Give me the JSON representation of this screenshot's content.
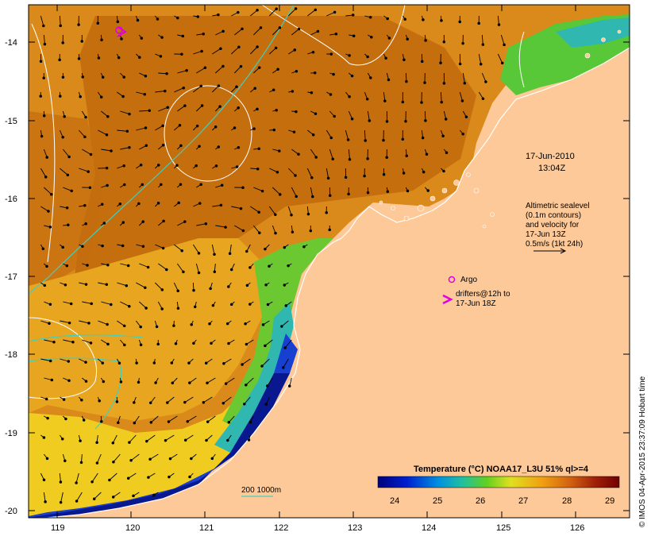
{
  "map": {
    "date_line1": "17-Jun-2010",
    "date_line2": "13:04Z",
    "altimetry_lines": [
      "Altimetric sealevel",
      "(0.1m contours)",
      "and velocity for",
      "17-Jun 13Z",
      "0.5m/s (1kt 24h)"
    ],
    "argo_label": "Argo",
    "drifters_lines": [
      "drifters@12h to",
      "17-Jun 18Z"
    ],
    "isobath_label": "200  1000m",
    "credit": "© IMOS 04-Apr-2015 23:37:09 Hobart time",
    "colorbar": {
      "title": "Temperature (°C) NOAA17_L3U 51% ql>=4",
      "ticks": [
        "24",
        "25",
        "26",
        "27",
        "28",
        "29"
      ]
    },
    "x_ticks": [
      "119",
      "120",
      "121",
      "122",
      "123",
      "124",
      "125",
      "126"
    ],
    "y_ticks": [
      "-14",
      "-15",
      "-16",
      "-17",
      "-18",
      "-19",
      "-20"
    ],
    "colors": {
      "land": "#fdc998",
      "warm": "#c8700f",
      "mid": "#e8a018",
      "yellow": "#f0d020",
      "green": "#50c040",
      "cyan": "#20b0c0",
      "blue": "#1030c0",
      "navy": "#081890",
      "argo": "#e000e0",
      "isobath": "#40d0c0"
    }
  }
}
